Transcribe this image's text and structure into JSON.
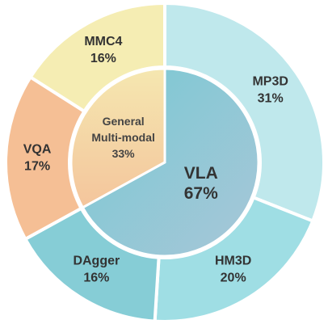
{
  "chart_data": {
    "type": "pie",
    "title": "",
    "inner": [
      {
        "line1": "General",
        "line2": "Multi-modal",
        "value_label": "33%",
        "value": 33,
        "color": "#f3d3a2"
      },
      {
        "line1": "VLA",
        "line2": "",
        "value_label": "67%",
        "value": 67,
        "color": "#8fcfd7"
      }
    ],
    "outer": [
      {
        "name": "MP3D",
        "value_label": "31%",
        "value": 31,
        "color": "#bfe8ec"
      },
      {
        "name": "HM3D",
        "value_label": "20%",
        "value": 20,
        "color": "#9fdee4"
      },
      {
        "name": "DAgger",
        "value_label": "16%",
        "value": 16,
        "color": "#86cdd6"
      },
      {
        "name": "VQA",
        "value_label": "17%",
        "value": 17,
        "color": "#f5bf95"
      },
      {
        "name": "MMC4",
        "value_label": "16%",
        "value": 16,
        "color": "#f5edb3"
      }
    ]
  }
}
